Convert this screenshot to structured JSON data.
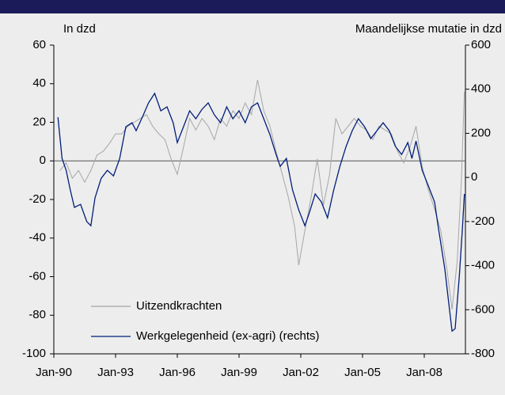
{
  "chart_data": {
    "type": "line",
    "y_label": "In dzd",
    "y2_label": "Maandelijkse mutatie in dzd",
    "xlim": [
      1990,
      2010
    ],
    "xticks": [
      {
        "value": 1990,
        "label": "Jan-90"
      },
      {
        "value": 1993,
        "label": "Jan-93"
      },
      {
        "value": 1996,
        "label": "Jan-96"
      },
      {
        "value": 1999,
        "label": "Jan-99"
      },
      {
        "value": 2002,
        "label": "Jan-02"
      },
      {
        "value": 2005,
        "label": "Jan-05"
      },
      {
        "value": 2008,
        "label": "Jan-08"
      }
    ],
    "ylim": [
      -100,
      60
    ],
    "yticks": [
      -100,
      -80,
      -60,
      -40,
      -20,
      0,
      20,
      40,
      60
    ],
    "y2lim": [
      -800,
      600
    ],
    "y2ticks": [
      -800,
      -600,
      -400,
      -200,
      0,
      200,
      400,
      600
    ],
    "series": [
      {
        "name": "Uitzendkrachten",
        "color": "#a6a6a6",
        "x": [
          1990.3,
          1990.6,
          1990.9,
          1991.2,
          1991.5,
          1991.8,
          1992.1,
          1992.4,
          1992.7,
          1993.0,
          1993.3,
          1993.6,
          1993.9,
          1994.2,
          1994.5,
          1994.8,
          1995.1,
          1995.4,
          1995.7,
          1996.0,
          1996.3,
          1996.6,
          1996.9,
          1997.2,
          1997.5,
          1997.8,
          1998.1,
          1998.4,
          1998.7,
          1999.0,
          1999.3,
          1999.6,
          1999.9,
          2000.2,
          2000.5,
          2000.8,
          2001.1,
          2001.4,
          2001.7,
          2001.9,
          2002.2,
          2002.5,
          2002.8,
          2003.1,
          2003.4,
          2003.7,
          2004.0,
          2004.3,
          2004.6,
          2004.9,
          2005.2,
          2005.5,
          2005.8,
          2006.1,
          2006.4,
          2006.7,
          2007.0,
          2007.3,
          2007.6,
          2007.9,
          2008.2,
          2008.5,
          2008.8,
          2009.1,
          2009.35,
          2009.6,
          2009.8,
          2009.95
        ],
        "values": [
          -5,
          -1,
          -9,
          -5,
          -11,
          -5,
          3,
          5,
          9,
          14,
          14,
          18,
          20,
          22,
          24,
          18,
          14,
          11,
          1,
          -7,
          7,
          22,
          16,
          22,
          18,
          11,
          22,
          18,
          26,
          22,
          30,
          24,
          42,
          26,
          18,
          5,
          -7,
          -19,
          -34,
          -54,
          -36,
          -19,
          1,
          -23,
          -7,
          22,
          14,
          18,
          22,
          18,
          16,
          11,
          18,
          16,
          14,
          5,
          -1,
          7,
          18,
          -3,
          -15,
          -25,
          -36,
          -56,
          -77,
          -52,
          -11,
          36
        ]
      },
      {
        "name": "Werkgelegenheid (ex-agri) (rechts)",
        "color": "#001e7a",
        "axis": "y2",
        "x": [
          1990.2,
          1990.4,
          1990.6,
          1990.8,
          1991.0,
          1991.3,
          1991.6,
          1991.8,
          1992.0,
          1992.3,
          1992.6,
          1992.9,
          1993.2,
          1993.5,
          1993.8,
          1994.0,
          1994.3,
          1994.6,
          1994.9,
          1995.2,
          1995.5,
          1995.8,
          1996.0,
          1996.3,
          1996.6,
          1996.9,
          1997.2,
          1997.5,
          1997.8,
          1998.1,
          1998.4,
          1998.7,
          1999.0,
          1999.3,
          1999.6,
          1999.9,
          2000.2,
          2000.5,
          2000.8,
          2001.0,
          2001.3,
          2001.6,
          2001.9,
          2002.2,
          2002.4,
          2002.7,
          2003.0,
          2003.3,
          2003.6,
          2003.9,
          2004.2,
          2004.5,
          2004.8,
          2005.1,
          2005.4,
          2005.7,
          2006.0,
          2006.3,
          2006.6,
          2006.9,
          2007.2,
          2007.4,
          2007.6,
          2007.9,
          2008.2,
          2008.5,
          2008.7,
          2009.0,
          2009.2,
          2009.35,
          2009.5,
          2009.7,
          2009.85,
          2009.95
        ],
        "values": [
          273,
          86,
          32,
          -57,
          -136,
          -122,
          -200,
          -219,
          -93,
          -4,
          32,
          7,
          86,
          230,
          248,
          212,
          273,
          338,
          381,
          302,
          320,
          248,
          158,
          230,
          302,
          266,
          309,
          338,
          284,
          248,
          320,
          266,
          302,
          248,
          320,
          338,
          266,
          194,
          104,
          50,
          86,
          -57,
          -147,
          -219,
          -165,
          -75,
          -111,
          -183,
          -57,
          50,
          140,
          212,
          266,
          230,
          176,
          212,
          248,
          212,
          140,
          104,
          158,
          86,
          165,
          32,
          -39,
          -111,
          -237,
          -416,
          -578,
          -697,
          -686,
          -452,
          -237,
          -75
        ]
      }
    ]
  }
}
